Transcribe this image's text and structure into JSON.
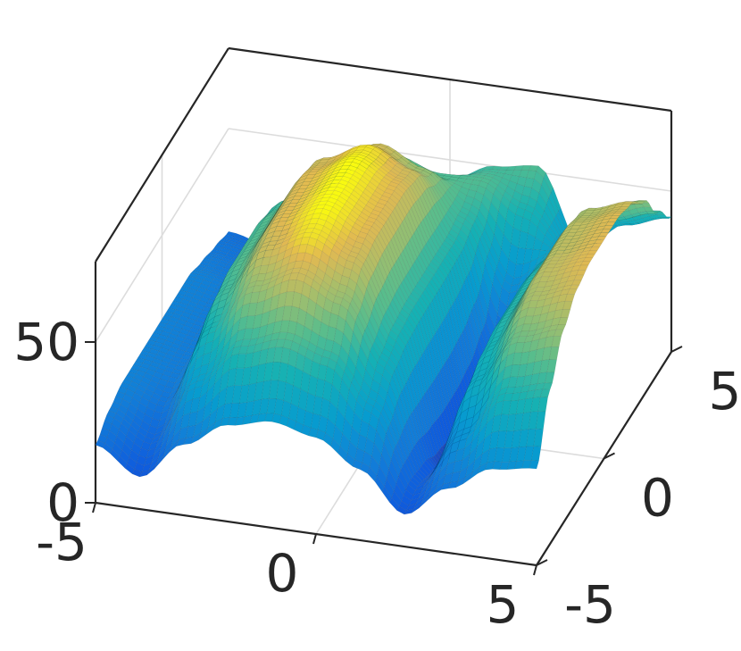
{
  "chart_data": {
    "type": "surface",
    "title": "",
    "xlabel": "",
    "ylabel": "",
    "zlabel": "",
    "xlim": [
      -5,
      5
    ],
    "ylim": [
      -5,
      5
    ],
    "zlim": [
      0,
      75
    ],
    "grid": true,
    "box": true,
    "colormap": "parula",
    "x_ticks": [
      -5,
      0,
      5
    ],
    "y_ticks": [
      -5,
      0,
      5
    ],
    "z_ticks": [
      0,
      50
    ],
    "x_tick_labels": [
      "-5",
      "0",
      "5"
    ],
    "y_tick_labels": [
      "-5",
      "0",
      "5"
    ],
    "z_tick_labels": [
      "0",
      "50"
    ],
    "surface": {
      "description": "Two large rounded ridges along y, separated by a deep valley at x≈1.7; low saddle in front, secondary hump near x≈1.7,y≈4",
      "x": [
        -5,
        -4,
        -3,
        -2,
        -1,
        0,
        1,
        2,
        3,
        4,
        5
      ],
      "y": [
        -5,
        -4,
        -3,
        -2,
        -1,
        0,
        1,
        2,
        3,
        4,
        5
      ],
      "z": [
        [
          18,
          10,
          22,
          30,
          33,
          30,
          22,
          10,
          20,
          28,
          30
        ],
        [
          22,
          15,
          35,
          48,
          52,
          48,
          35,
          12,
          30,
          45,
          48
        ],
        [
          24,
          20,
          45,
          60,
          66,
          60,
          42,
          10,
          40,
          56,
          60
        ],
        [
          24,
          22,
          50,
          66,
          72,
          66,
          45,
          6,
          44,
          62,
          66
        ],
        [
          24,
          22,
          52,
          68,
          74,
          68,
          46,
          4,
          46,
          64,
          68
        ],
        [
          24,
          22,
          52,
          68,
          74,
          68,
          46,
          4,
          46,
          64,
          68
        ],
        [
          24,
          22,
          52,
          68,
          74,
          68,
          46,
          6,
          46,
          64,
          68
        ],
        [
          24,
          22,
          50,
          66,
          72,
          66,
          46,
          12,
          44,
          62,
          66
        ],
        [
          22,
          20,
          46,
          60,
          66,
          60,
          48,
          28,
          40,
          56,
          60
        ],
        [
          20,
          18,
          40,
          52,
          56,
          52,
          52,
          45,
          34,
          46,
          50
        ],
        [
          18,
          15,
          34,
          44,
          48,
          44,
          50,
          52,
          28,
          38,
          42
        ]
      ]
    }
  }
}
